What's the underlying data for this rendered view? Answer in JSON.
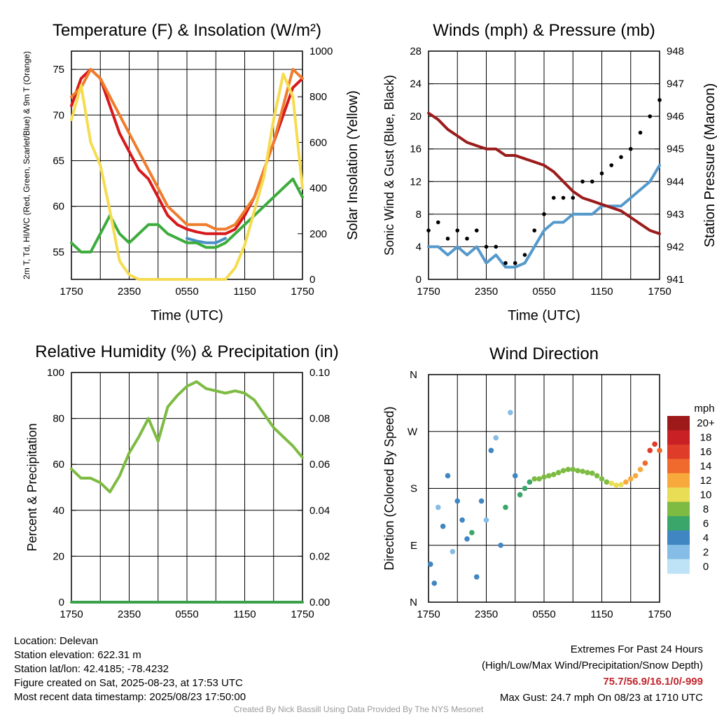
{
  "chart_data": [
    {
      "type": "line",
      "title": "Temperature (F) & Insolation (W/m²)",
      "xlabel": "Time (UTC)",
      "ylabel": "2m T, Td, HI/WC (Red, Green, Scarlet/Blue) & 9m T (Orange)",
      "y2label": "Solar Insolation (Yellow)",
      "x_ticks": [
        "1750",
        "2350",
        "0550",
        "1150",
        "1750"
      ],
      "ylim": [
        52,
        77
      ],
      "y_ticks": [
        55,
        60,
        65,
        70,
        75
      ],
      "y2lim": [
        0,
        1000
      ],
      "y2_ticks": [
        0,
        200,
        400,
        600,
        800,
        1000
      ],
      "x_hours": [
        0,
        1,
        2,
        3,
        4,
        5,
        6,
        7,
        8,
        9,
        10,
        11,
        12,
        13,
        14,
        15,
        16,
        17,
        18,
        19,
        20,
        21,
        22,
        23,
        24
      ],
      "grid": true,
      "series": [
        {
          "color": "#d7191c",
          "axis": "left",
          "values": [
            71,
            74,
            75,
            74,
            71,
            68,
            66,
            64,
            63,
            61,
            59,
            58,
            57.5,
            57.2,
            57,
            57,
            57,
            57.5,
            59,
            61,
            64,
            67,
            70,
            73,
            74
          ]
        },
        {
          "color": "#ef7d2d",
          "axis": "left",
          "values": [
            72,
            73,
            75,
            74,
            72,
            70,
            68,
            66,
            64,
            62,
            60,
            59,
            58,
            58,
            58,
            57.5,
            57.5,
            58,
            59.5,
            61,
            64,
            67,
            71,
            75,
            74
          ]
        },
        {
          "color": "#4a90c8",
          "axis": "left",
          "values": [
            null,
            null,
            null,
            null,
            null,
            null,
            null,
            null,
            null,
            null,
            null,
            null,
            56.5,
            56.2,
            56,
            56,
            56.5,
            null,
            null,
            null,
            null,
            null,
            null,
            null,
            null
          ]
        },
        {
          "color": "#3cac3c",
          "axis": "left",
          "values": [
            56,
            55,
            55,
            57,
            59,
            57,
            56,
            57,
            58,
            58,
            57,
            56.5,
            56,
            56,
            55.5,
            55.5,
            56,
            57,
            58,
            59,
            60,
            61,
            62,
            63,
            61
          ]
        },
        {
          "color": "#f5dc50",
          "axis": "right",
          "values": [
            700,
            850,
            600,
            500,
            300,
            80,
            20,
            0,
            0,
            0,
            0,
            0,
            0,
            0,
            0,
            0,
            0,
            50,
            150,
            300,
            450,
            700,
            900,
            800,
            400
          ]
        }
      ]
    },
    {
      "type": "line",
      "title": "Winds (mph) & Pressure (mb)",
      "xlabel": "Time (UTC)",
      "ylabel": "Sonic Wind & Gust (Blue, Black)",
      "y2label": "Station Pressure (Maroon)",
      "x_ticks": [
        "1750",
        "2350",
        "0550",
        "1150",
        "1750"
      ],
      "ylim": [
        0,
        28
      ],
      "y_ticks": [
        0,
        4,
        8,
        12,
        16,
        20,
        24,
        28
      ],
      "y2lim": [
        941,
        948
      ],
      "y2_ticks": [
        941,
        942,
        943,
        944,
        945,
        946,
        947,
        948
      ],
      "x_hours": [
        0,
        1,
        2,
        3,
        4,
        5,
        6,
        7,
        8,
        9,
        10,
        11,
        12,
        13,
        14,
        15,
        16,
        17,
        18,
        19,
        20,
        21,
        22,
        23,
        24
      ],
      "grid": true,
      "series": [
        {
          "color": "#5599cc",
          "axis": "left",
          "values": [
            4,
            4,
            3,
            4,
            3,
            4,
            2,
            3,
            1.5,
            1.5,
            2,
            4,
            6,
            7,
            7,
            8,
            8,
            8,
            9,
            9,
            9,
            10,
            11,
            12,
            14
          ]
        },
        {
          "color": "#000000",
          "axis": "left",
          "style": "dots",
          "values": [
            6,
            7,
            5,
            6,
            5,
            6,
            4,
            4,
            2,
            2,
            3,
            6,
            8,
            10,
            10,
            10,
            12,
            12,
            13,
            14,
            15,
            16,
            18,
            20,
            22
          ]
        },
        {
          "color": "#9b1c1c",
          "axis": "right",
          "values": [
            946.1,
            945.9,
            945.6,
            945.4,
            945.2,
            945.1,
            945.0,
            945.0,
            944.8,
            944.8,
            944.7,
            944.6,
            944.5,
            944.3,
            944.0,
            943.7,
            943.5,
            943.4,
            943.3,
            943.2,
            943.1,
            942.9,
            942.7,
            942.5,
            942.4
          ]
        }
      ]
    },
    {
      "type": "line",
      "title": "Relative Humidity (%) & Precipitation (in)",
      "xlabel": "",
      "ylabel": "Percent & Precipitation",
      "x_ticks": [
        "1750",
        "2350",
        "0550",
        "1150",
        "1750"
      ],
      "ylim": [
        0,
        100
      ],
      "y_ticks": [
        0,
        20,
        40,
        60,
        80,
        100
      ],
      "y2lim": [
        0,
        0.1
      ],
      "y2_ticks": [
        "0.00",
        "0.02",
        "0.04",
        "0.06",
        "0.08",
        "0.10"
      ],
      "x_hours": [
        0,
        1,
        2,
        3,
        4,
        5,
        6,
        7,
        8,
        9,
        10,
        11,
        12,
        13,
        14,
        15,
        16,
        17,
        18,
        19,
        20,
        21,
        22,
        23,
        24
      ],
      "grid": true,
      "series": [
        {
          "color": "#7dbb42",
          "axis": "left",
          "values": [
            58,
            54,
            54,
            52,
            48,
            55,
            65,
            72,
            80,
            70,
            85,
            90,
            94,
            96,
            93,
            92,
            91,
            92,
            91,
            88,
            82,
            76,
            72,
            68,
            63
          ]
        },
        {
          "color": "#3aa14a",
          "axis": "right",
          "values": [
            0,
            0,
            0,
            0,
            0,
            0,
            0,
            0,
            0,
            0,
            0,
            0,
            0,
            0,
            0,
            0,
            0,
            0,
            0,
            0,
            0,
            0,
            0,
            0,
            0
          ]
        }
      ]
    },
    {
      "type": "scatter",
      "title": "Wind Direction",
      "xlabel": "",
      "ylabel": "Direction (Colored By Speed)",
      "x_ticks": [
        "1750",
        "2350",
        "0550",
        "1150",
        "1750"
      ],
      "y_ticks": [
        "N",
        "E",
        "S",
        "W",
        "N"
      ],
      "ylim": [
        0,
        360
      ],
      "grid": true,
      "x_hours": [
        0.2,
        0.6,
        1.0,
        1.5,
        2.0,
        2.5,
        3.0,
        3.5,
        4.0,
        4.5,
        5.0,
        5.5,
        6.0,
        6.5,
        7.0,
        7.5,
        8.0,
        8.5,
        9.0,
        9.5,
        10.0,
        10.5,
        11.0,
        11.5,
        12.0,
        12.5,
        13.0,
        13.5,
        14.0,
        14.5,
        15.0,
        15.5,
        16.0,
        16.5,
        17.0,
        17.5,
        18.0,
        18.5,
        19.0,
        19.5,
        20.0,
        20.5,
        21.0,
        21.5,
        22.0,
        22.5,
        23.0,
        23.5,
        24.0
      ],
      "directions": [
        60,
        30,
        150,
        120,
        200,
        80,
        160,
        130,
        100,
        110,
        40,
        160,
        130,
        240,
        260,
        90,
        150,
        300,
        200,
        170,
        180,
        190,
        195,
        195,
        198,
        200,
        202,
        205,
        208,
        210,
        210,
        208,
        207,
        205,
        204,
        200,
        195,
        190,
        188,
        185,
        186,
        190,
        195,
        200,
        210,
        220,
        240,
        250,
        240
      ],
      "speeds": [
        3,
        4,
        2,
        3,
        4,
        2,
        3,
        4,
        3,
        5,
        4,
        3,
        2,
        3,
        2,
        4,
        5,
        2,
        4,
        5,
        6,
        6,
        7,
        7,
        7,
        7,
        7,
        7,
        7,
        7,
        7,
        7,
        7,
        7,
        7,
        7,
        8,
        8,
        9,
        9,
        10,
        11,
        12,
        12,
        12,
        14,
        16,
        16,
        14
      ],
      "colorbar": {
        "title": "mph",
        "labels": [
          "20+",
          "18",
          "16",
          "14",
          "12",
          "10",
          "8",
          "6",
          "4",
          "2",
          "0"
        ],
        "colors": [
          "#9e1a1a",
          "#c82024",
          "#e03c2a",
          "#ef6a2c",
          "#f7a93c",
          "#e9dd55",
          "#7dbb42",
          "#3aa66a",
          "#3f86c2",
          "#85bde6",
          "#bfe3f6"
        ]
      }
    }
  ],
  "footer": {
    "location": "Location: Delevan",
    "elevation": "Station elevation: 622.31 m",
    "latlon": "Station lat/lon: 42.4185; -78.4232",
    "created": "Figure created on Sat, 2025-08-23, at 17:53 UTC",
    "recent": "Most recent data timestamp: 2025/08/23 17:50:00",
    "extremes_title": "Extremes For Past 24 Hours",
    "extremes_subtitle": "(High/Low/Max Wind/Precipitation/Snow Depth)",
    "extremes_values": "75.7/56.9/16.1/0/-999",
    "max_gust": "Max Gust: 24.7 mph On 08/23 at 1710 UTC",
    "credit": "Created By Nick Bassill Using Data Provided By The NYS Mesonet"
  }
}
